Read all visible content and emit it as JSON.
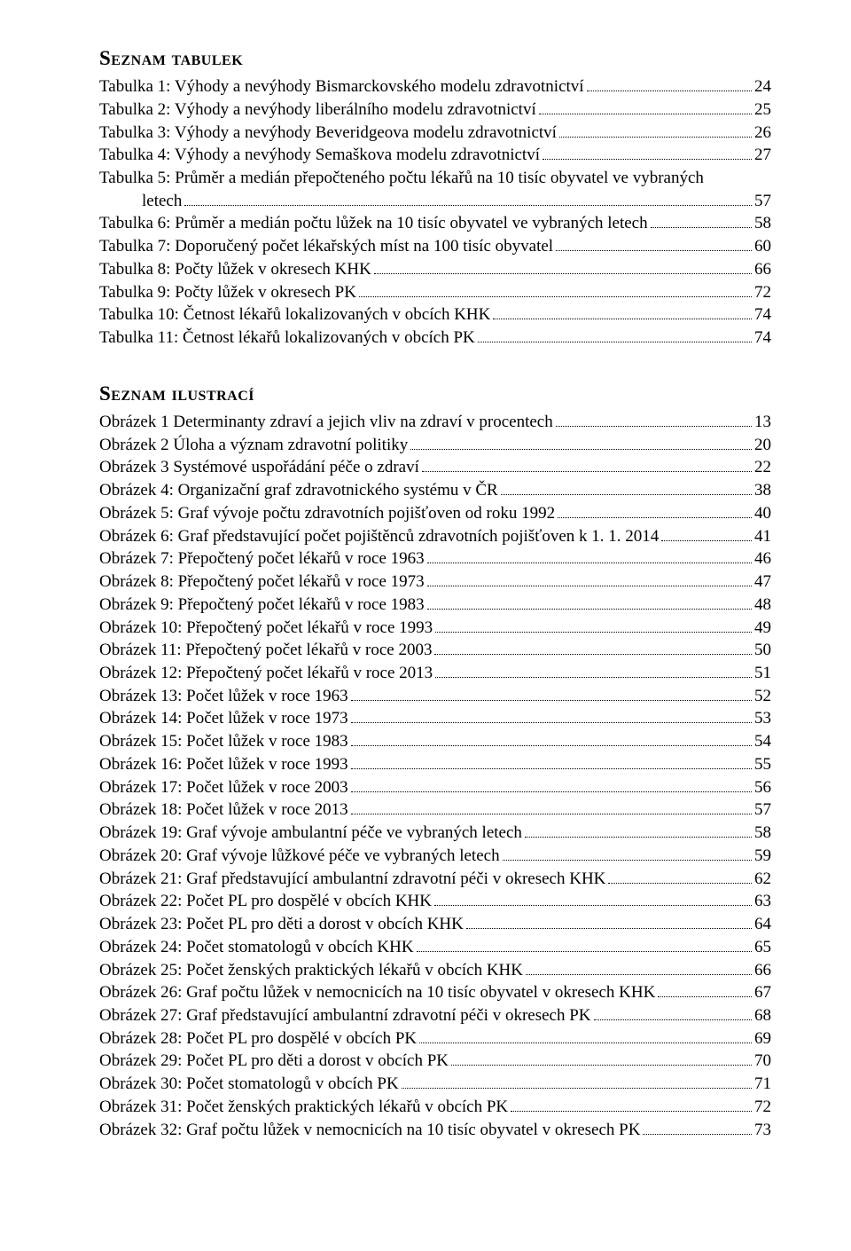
{
  "tables_heading": "Seznam tabulek",
  "illus_heading": "Seznam ilustrací",
  "tables": [
    {
      "label": "Tabulka 1: Výhody a nevýhody Bismarckovského modelu zdravotnictví",
      "page": "24"
    },
    {
      "label": "Tabulka 2: Výhody a nevýhody liberálního modelu zdravotnictví",
      "page": "25"
    },
    {
      "label": "Tabulka 3: Výhody a nevýhody Beveridgeova modelu zdravotnictví",
      "page": "26"
    },
    {
      "label": "Tabulka 4: Výhody a nevýhody Semaškova modelu zdravotnictví",
      "page": "27"
    },
    {
      "label": "Tabulka 5: Průměr a medián přepočteného počtu lékařů na 10 tisíc obyvatel ve vybraných",
      "cont": "letech",
      "page": "57"
    },
    {
      "label": "Tabulka 6: Průměr a medián počtu lůžek na 10 tisíc obyvatel ve vybraných letech",
      "page": "58"
    },
    {
      "label": "Tabulka 7: Doporučený počet lékařských míst na 100 tisíc obyvatel",
      "page": "60"
    },
    {
      "label": "Tabulka 8: Počty lůžek v okresech KHK",
      "page": "66"
    },
    {
      "label": "Tabulka 9: Počty lůžek v okresech PK",
      "page": "72"
    },
    {
      "label": "Tabulka 10: Četnost lékařů lokalizovaných v obcích KHK",
      "page": "74"
    },
    {
      "label": "Tabulka 11: Četnost lékařů lokalizovaných v obcích PK",
      "page": "74"
    }
  ],
  "illustrations": [
    {
      "label": "Obrázek 1 Determinanty zdraví a jejich vliv na zdraví v procentech",
      "page": "13"
    },
    {
      "label": "Obrázek 2 Úloha a význam zdravotní politiky",
      "page": "20"
    },
    {
      "label": "Obrázek 3 Systémové uspořádání péče o zdraví",
      "page": "22"
    },
    {
      "label": "Obrázek 4: Organizační graf zdravotnického systému v ČR",
      "page": "38"
    },
    {
      "label": "Obrázek 5: Graf vývoje počtu zdravotních pojišťoven od roku 1992",
      "page": "40"
    },
    {
      "label": "Obrázek 6: Graf představující počet pojištěnců zdravotních pojišťoven k 1. 1. 2014",
      "page": "41"
    },
    {
      "label": "Obrázek 7: Přepočtený počet lékařů v roce 1963",
      "page": "46"
    },
    {
      "label": "Obrázek 8: Přepočtený počet lékařů v roce 1973",
      "page": "47"
    },
    {
      "label": "Obrázek 9: Přepočtený počet lékařů v roce 1983",
      "page": "48"
    },
    {
      "label": "Obrázek 10: Přepočtený počet lékařů v roce 1993",
      "page": "49"
    },
    {
      "label": "Obrázek 11: Přepočtený počet lékařů v roce 2003",
      "page": "50"
    },
    {
      "label": "Obrázek 12: Přepočtený počet lékařů v roce 2013",
      "page": "51"
    },
    {
      "label": "Obrázek 13: Počet lůžek v roce 1963",
      "page": "52"
    },
    {
      "label": "Obrázek 14: Počet lůžek v roce 1973",
      "page": "53"
    },
    {
      "label": "Obrázek 15: Počet lůžek v roce 1983",
      "page": "54"
    },
    {
      "label": "Obrázek 16: Počet lůžek v roce 1993",
      "page": "55"
    },
    {
      "label": "Obrázek 17: Počet lůžek v roce 2003",
      "page": "56"
    },
    {
      "label": "Obrázek 18: Počet lůžek v roce 2013",
      "page": "57"
    },
    {
      "label": "Obrázek 19: Graf vývoje ambulantní péče ve vybraných letech",
      "page": "58"
    },
    {
      "label": "Obrázek 20: Graf vývoje lůžkové péče ve vybraných letech",
      "page": "59"
    },
    {
      "label": "Obrázek 21: Graf představující ambulantní zdravotní péči v okresech KHK",
      "page": "62"
    },
    {
      "label": "Obrázek 22: Počet PL pro dospělé v obcích KHK",
      "page": "63"
    },
    {
      "label": "Obrázek 23: Počet PL pro děti a dorost v obcích KHK",
      "page": "64"
    },
    {
      "label": "Obrázek 24: Počet stomatologů v obcích KHK",
      "page": "65"
    },
    {
      "label": "Obrázek 25: Počet ženských praktických lékařů v obcích KHK",
      "page": "66"
    },
    {
      "label": "Obrázek 26: Graf počtu lůžek v nemocnicích na 10 tisíc obyvatel v okresech KHK",
      "page": "67"
    },
    {
      "label": "Obrázek 27: Graf představující ambulantní zdravotní péči v okresech PK",
      "page": "68"
    },
    {
      "label": "Obrázek 28: Počet PL pro dospělé v obcích PK",
      "page": "69"
    },
    {
      "label": "Obrázek 29: Počet PL pro děti a dorost v obcích PK",
      "page": "70"
    },
    {
      "label": "Obrázek 30: Počet stomatologů v obcích PK",
      "page": "71"
    },
    {
      "label": "Obrázek 31: Počet ženských praktických lékařů v obcích PK",
      "page": "72"
    },
    {
      "label": "Obrázek 32: Graf počtu lůžek v nemocnicích na 10 tisíc obyvatel v okresech PK",
      "page": "73"
    }
  ]
}
